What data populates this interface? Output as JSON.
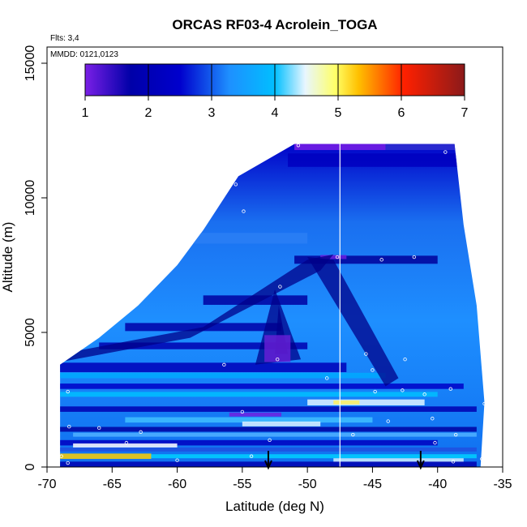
{
  "chart_data": {
    "type": "heatmap",
    "title": "ORCAS RF03-4 Acrolein_TOGA",
    "flights_note": "Flts: 3,4",
    "dates_note": "MMDD: 0121,0123",
    "xlabel": "Latitude (deg N)",
    "ylabel": "Altitude (m)",
    "xlim": [
      -70,
      -35
    ],
    "ylim": [
      0,
      15500
    ],
    "x_ticks": [
      "-70",
      "-65",
      "-60",
      "-55",
      "-50",
      "-45",
      "-40",
      "-35"
    ],
    "y_ticks": [
      "0",
      "5000",
      "10000",
      "15000"
    ],
    "colorbar": {
      "ticks": [
        "1",
        "2",
        "3",
        "4",
        "5",
        "6",
        "7"
      ],
      "range": [
        1,
        7
      ],
      "colors": [
        "#7a1fe6",
        "#00008b",
        "#1e90ff",
        "#00bfff",
        "#ffffff",
        "#ffff00",
        "#ffa500",
        "#ff0000",
        "#8b1a1a"
      ]
    },
    "vertical_line_lat": -47.5,
    "arrows_lat": [
      -53,
      -41.3
    ],
    "curtain_outline": [
      [
        -69,
        0
      ],
      [
        -69,
        3800
      ],
      [
        -66,
        4800
      ],
      [
        -63,
        6000
      ],
      [
        -60,
        7500
      ],
      [
        -58,
        8800
      ],
      [
        -55.3,
        10800
      ],
      [
        -51,
        12000
      ],
      [
        -38.7,
        12000
      ],
      [
        -38,
        9000
      ],
      [
        -37,
        6000
      ],
      [
        -36.4,
        2400
      ],
      [
        -36.7,
        0
      ]
    ],
    "sample_points": [
      [
        -68.9,
        400
      ],
      [
        -68.4,
        150
      ],
      [
        -68.3,
        1500
      ],
      [
        -68.4,
        2800
      ],
      [
        -66.0,
        1450
      ],
      [
        -63.9,
        900
      ],
      [
        -62.8,
        1300
      ],
      [
        -60.0,
        250
      ],
      [
        -56.4,
        3800
      ],
      [
        -55.0,
        2050
      ],
      [
        -55.5,
        10500
      ],
      [
        -54.9,
        9500
      ],
      [
        -54.3,
        400
      ],
      [
        -52.9,
        1000
      ],
      [
        -52.3,
        4000
      ],
      [
        -52.1,
        6700
      ],
      [
        -50.7,
        11950
      ],
      [
        -48.5,
        3300
      ],
      [
        -47.7,
        7800
      ],
      [
        -46.5,
        1200
      ],
      [
        -45.5,
        4200
      ],
      [
        -45.0,
        3600
      ],
      [
        -44.8,
        2800
      ],
      [
        -44.3,
        7700
      ],
      [
        -43.8,
        1700
      ],
      [
        -42.7,
        2850
      ],
      [
        -42.5,
        4000
      ],
      [
        -41.8,
        7800
      ],
      [
        -41.0,
        2700
      ],
      [
        -40.4,
        1800
      ],
      [
        -40.2,
        900
      ],
      [
        -39.4,
        11700
      ],
      [
        -39.0,
        2900
      ],
      [
        -38.8,
        200
      ],
      [
        -38.6,
        1200
      ],
      [
        -36.6,
        300
      ],
      [
        -36.4,
        2350
      ]
    ]
  }
}
